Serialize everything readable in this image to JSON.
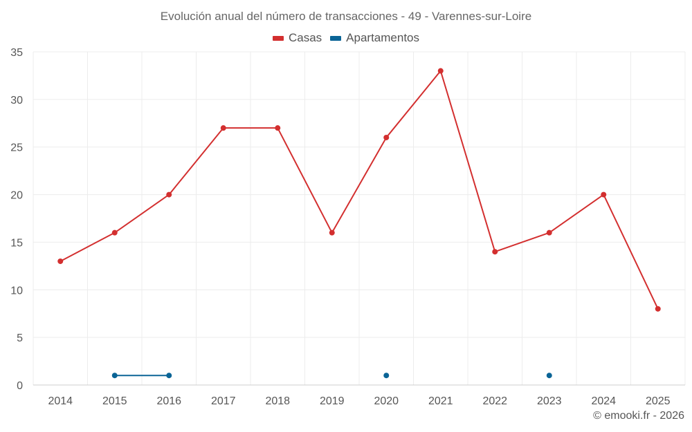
{
  "chart_data": {
    "type": "line",
    "title": "Evolución anual del número de transacciones - 49 - Varennes-sur-Loire",
    "categories": [
      "2014",
      "2015",
      "2016",
      "2017",
      "2018",
      "2019",
      "2020",
      "2021",
      "2022",
      "2023",
      "2024",
      "2025"
    ],
    "series": [
      {
        "name": "Casas",
        "color": "#d32f2f",
        "values": [
          13,
          16,
          20,
          27,
          27,
          16,
          26,
          33,
          14,
          16,
          20,
          8
        ]
      },
      {
        "name": "Apartamentos",
        "color": "#0a6496",
        "values": [
          null,
          1,
          1,
          null,
          null,
          null,
          1,
          null,
          null,
          1,
          null,
          null
        ]
      }
    ],
    "ylim": [
      0,
      35
    ],
    "yticks": [
      "0",
      "5",
      "10",
      "15",
      "20",
      "25",
      "30",
      "35"
    ],
    "legend_position": "top-center",
    "grid": true
  },
  "credit": "© emooki.fr - 2026"
}
